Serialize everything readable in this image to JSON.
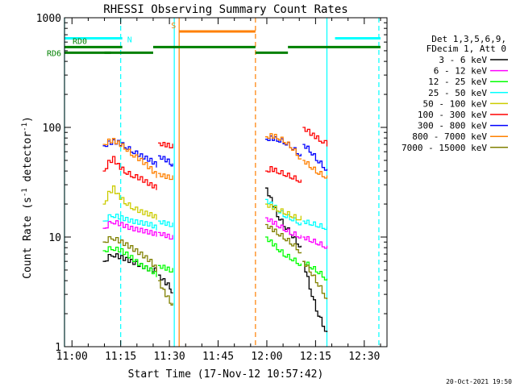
{
  "chart_data": {
    "type": "line",
    "title": "RHESSI Observing Summary Count Rates",
    "xlabel": "Start Time (17-Nov-12 10:57:42)",
    "ylabel": "Count Rate (s⁻¹ detector⁻¹)",
    "ylabel_main": "Count Rate (s",
    "ylabel_sup1": "-1",
    "ylabel_mid": " detector",
    "ylabel_sup2": "-1",
    "ylabel_end": ")",
    "y_scale": "log",
    "xlim": [
      "10:57:42",
      "12:37:00"
    ],
    "ylim": [
      1,
      1000
    ],
    "x_ticks": [
      "11:00",
      "11:15",
      "11:30",
      "11:45",
      "12:00",
      "12:15",
      "12:30"
    ],
    "y_ticks": [
      "1",
      "10",
      "100",
      "1000"
    ],
    "legend_header": [
      "Det 1,3,5,6,9,",
      "FDecim 1, Att 0"
    ],
    "footer": "20-Oct-2021 19:50",
    "grid": false,
    "legend_position": "right",
    "series": [
      {
        "name": "3 - 6 keV",
        "color": "#000000",
        "segments": [
          {
            "t": [
              "11:09:30",
              "11:12:00",
              "11:15:00",
              "11:18:00",
              "11:21:00",
              "11:24:00",
              "11:26:00"
            ],
            "v": [
              6,
              7,
              6.5,
              6,
              5.5,
              5,
              5
            ]
          },
          {
            "t": [
              "11:26:30",
              "11:28:00",
              "11:30:00",
              "11:31:00"
            ],
            "v": [
              4.5,
              4,
              3.5,
              3
            ]
          },
          {
            "t": [
              "11:59:30",
              "12:01:00",
              "12:03:00",
              "12:05:00",
              "12:07:00",
              "12:09:00",
              "12:10:30"
            ],
            "v": [
              28,
              22,
              16,
              13,
              11,
              9,
              8
            ]
          },
          {
            "t": [
              "12:11:00",
              "12:13:00",
              "12:15:00",
              "12:17:00",
              "12:18:30"
            ],
            "v": [
              6,
              3.5,
              2.2,
              1.6,
              1.3
            ]
          }
        ]
      },
      {
        "name": "6 - 12 keV",
        "color": "#ff00ff",
        "segments": [
          {
            "t": [
              "11:09:30",
              "11:12:00",
              "11:15:00",
              "11:18:00",
              "11:21:00",
              "11:24:00",
              "11:26:00"
            ],
            "v": [
              12,
              14,
              13,
              12,
              11.5,
              11,
              10.5
            ]
          },
          {
            "t": [
              "11:26:30",
              "11:28:00",
              "11:30:00",
              "11:31:00"
            ],
            "v": [
              11,
              10.5,
              10,
              10
            ]
          },
          {
            "t": [
              "11:59:30",
              "12:01:00",
              "12:03:00",
              "12:05:00",
              "12:07:00",
              "12:09:00",
              "12:10:30"
            ],
            "v": [
              15,
              14,
              13,
              12,
              11,
              10.5,
              10
            ]
          },
          {
            "t": [
              "12:11:00",
              "12:13:00",
              "12:15:00",
              "12:17:00",
              "12:18:30"
            ],
            "v": [
              10,
              9.5,
              9,
              8.5,
              8
            ]
          }
        ]
      },
      {
        "name": "12 - 25 keV",
        "color": "#00ff00",
        "segments": [
          {
            "t": [
              "11:09:30",
              "11:12:00",
              "11:15:00",
              "11:18:00",
              "11:21:00",
              "11:24:00",
              "11:26:00"
            ],
            "v": [
              7.5,
              8,
              7.5,
              6.5,
              5.5,
              5,
              4.5
            ]
          },
          {
            "t": [
              "11:26:30",
              "11:28:00",
              "11:30:00",
              "11:31:00"
            ],
            "v": [
              5.5,
              5.3,
              5,
              5
            ]
          },
          {
            "t": [
              "11:59:30",
              "12:01:00",
              "12:03:00",
              "12:05:00",
              "12:07:00",
              "12:09:00",
              "12:10:30"
            ],
            "v": [
              10,
              9,
              8,
              7,
              6.5,
              6,
              5.5
            ]
          },
          {
            "t": [
              "12:11:00",
              "12:13:00",
              "12:15:00",
              "12:17:00",
              "12:18:30"
            ],
            "v": [
              6,
              5.5,
              5,
              4.5,
              4
            ]
          }
        ]
      },
      {
        "name": "25 - 50 keV",
        "color": "#00ffff",
        "segments": [
          {
            "t": [
              "11:09:30",
              "11:12:00",
              "11:15:00",
              "11:18:00",
              "11:21:00",
              "11:24:00",
              "11:26:00"
            ],
            "v": [
              14,
              16,
              15,
              14,
              13.5,
              13,
              12
            ]
          },
          {
            "t": [
              "11:26:30",
              "11:28:00",
              "11:30:00",
              "11:31:00"
            ],
            "v": [
              14,
              13.5,
              13,
              13
            ]
          },
          {
            "t": [
              "11:59:30",
              "12:01:00",
              "12:03:00",
              "12:05:00",
              "12:07:00",
              "12:09:00",
              "12:10:30"
            ],
            "v": [
              22,
              20,
              18,
              16,
              15,
              14,
              13
            ]
          },
          {
            "t": [
              "12:11:00",
              "12:13:00",
              "12:15:00",
              "12:17:00",
              "12:18:30"
            ],
            "v": [
              14,
              13.5,
              13,
              12.5,
              12
            ]
          }
        ]
      },
      {
        "name": "50 - 100 keV",
        "color": "#cccc00",
        "segments": [
          {
            "t": [
              "11:09:30",
              "11:11:00",
              "11:12:30",
              "11:14:00",
              "11:16:00",
              "11:18:00",
              "11:21:00",
              "11:24:00",
              "11:26:00"
            ],
            "v": [
              20,
              25,
              28,
              24,
              21,
              19,
              17,
              16,
              15
            ]
          },
          {
            "t": [
              "11:59:30",
              "12:01:00",
              "12:03:00",
              "12:05:00",
              "12:07:00",
              "12:09:00",
              "12:10:30"
            ],
            "v": [
              20,
              19,
              18,
              17,
              16,
              15,
              15
            ]
          }
        ]
      },
      {
        "name": "100 - 300 keV",
        "color": "#ff0000",
        "segments": [
          {
            "t": [
              "11:09:30",
              "11:11:00",
              "11:12:30",
              "11:14:00",
              "11:16:00",
              "11:18:00",
              "11:21:00",
              "11:24:00",
              "11:26:00"
            ],
            "v": [
              40,
              48,
              52,
              45,
              40,
              37,
              34,
              30,
              28
            ]
          },
          {
            "t": [
              "11:26:30",
              "11:28:00",
              "11:30:00",
              "11:31:00"
            ],
            "v": [
              72,
              70,
              68,
              68
            ]
          },
          {
            "t": [
              "11:59:30",
              "12:01:00",
              "12:03:00",
              "12:05:00",
              "12:07:00",
              "12:09:00",
              "12:10:30"
            ],
            "v": [
              40,
              42,
              40,
              38,
              36,
              34,
              32
            ]
          },
          {
            "t": [
              "12:11:00",
              "12:12:30",
              "12:14:00",
              "12:16:00",
              "12:18:30"
            ],
            "v": [
              100,
              92,
              85,
              78,
              70
            ]
          }
        ]
      },
      {
        "name": "300 - 800 keV",
        "color": "#0000ff",
        "segments": [
          {
            "t": [
              "11:09:30",
              "11:11:00",
              "11:12:30",
              "11:14:00",
              "11:16:00",
              "11:18:00",
              "11:21:00",
              "11:24:00",
              "11:26:00"
            ],
            "v": [
              68,
              72,
              74,
              73,
              68,
              62,
              55,
              50,
              45
            ]
          },
          {
            "t": [
              "11:26:30",
              "11:28:00",
              "11:30:00",
              "11:31:00"
            ],
            "v": [
              55,
              52,
              48,
              45
            ]
          },
          {
            "t": [
              "11:59:30",
              "12:01:00",
              "12:03:00",
              "12:05:00",
              "12:07:00",
              "12:09:00",
              "12:10:30"
            ],
            "v": [
              78,
              80,
              78,
              74,
              68,
              60,
              55
            ]
          },
          {
            "t": [
              "12:11:00",
              "12:13:00",
              "12:15:00",
              "12:17:00",
              "12:18:30"
            ],
            "v": [
              70,
              62,
              52,
              45,
              40
            ]
          }
        ]
      },
      {
        "name": "800 - 7000 keV",
        "color": "#ff8000",
        "segments": [
          {
            "t": [
              "11:09:30",
              "11:11:00",
              "11:12:30",
              "11:14:00",
              "11:16:00",
              "11:18:00",
              "11:21:00",
              "11:24:00",
              "11:26:00"
            ],
            "v": [
              70,
              75,
              76,
              72,
              66,
              58,
              50,
              42,
              36
            ]
          },
          {
            "t": [
              "11:26:30",
              "11:28:00",
              "11:30:00",
              "11:31:00"
            ],
            "v": [
              38,
              36,
              35,
              35
            ]
          },
          {
            "t": [
              "11:59:30",
              "12:01:00",
              "12:03:00",
              "12:05:00",
              "12:07:00",
              "12:09:00",
              "12:10:30"
            ],
            "v": [
              82,
              84,
              82,
              76,
              68,
              58,
              50
            ]
          },
          {
            "t": [
              "12:11:00",
              "12:13:00",
              "12:15:00",
              "12:17:00",
              "12:18:30"
            ],
            "v": [
              50,
              45,
              40,
              37,
              35
            ]
          }
        ]
      },
      {
        "name": "7000 - 15000 keV",
        "color": "#808000",
        "segments": [
          {
            "t": [
              "11:09:30",
              "11:12:00",
              "11:15:00",
              "11:18:00",
              "11:21:00",
              "11:24:00",
              "11:26:00"
            ],
            "v": [
              9,
              10,
              9,
              8,
              7,
              6,
              5
            ]
          },
          {
            "t": [
              "11:26:30",
              "11:28:00",
              "11:30:00",
              "11:31:00"
            ],
            "v": [
              4,
              3.2,
              2.6,
              2.4
            ]
          },
          {
            "t": [
              "11:59:30",
              "12:01:00",
              "12:03:00",
              "12:05:00",
              "12:07:00",
              "12:09:00",
              "12:10:30"
            ],
            "v": [
              13,
              12,
              11,
              10,
              9,
              8,
              7
            ]
          },
          {
            "t": [
              "12:11:00",
              "12:13:00",
              "12:15:00",
              "12:17:00",
              "12:18:30"
            ],
            "v": [
              6,
              5,
              4,
              3.2,
              2.6
            ]
          }
        ]
      }
    ],
    "annotations": {
      "bars": [
        {
          "label": "",
          "color": "#00ffff",
          "t": [
            "10:57:42",
            "11:15:30"
          ],
          "v": 650
        },
        {
          "label": "",
          "color": "#00ffff",
          "t": [
            "12:21:00",
            "12:35:00"
          ],
          "v": 650
        },
        {
          "label": "S",
          "color": "#ff8000",
          "t": [
            "11:33:00",
            "11:56:30"
          ],
          "v": 750
        },
        {
          "label": "RD0",
          "color": "#008000",
          "t": [
            "10:57:42",
            "11:15:30"
          ],
          "v": 540
        },
        {
          "label": "",
          "color": "#008000",
          "t": [
            "11:25:00",
            "11:56:30"
          ],
          "v": 540
        },
        {
          "label": "",
          "color": "#008000",
          "t": [
            "12:06:30",
            "12:18:30"
          ],
          "v": 540
        },
        {
          "label": "",
          "color": "#008000",
          "t": [
            "12:18:30",
            "12:35:00"
          ],
          "v": 540
        },
        {
          "label": "RD6",
          "color": "#008000",
          "t": [
            "10:57:42",
            "11:12:00"
          ],
          "v": 480
        },
        {
          "label": "",
          "color": "#008000",
          "t": [
            "11:10:00",
            "11:25:00"
          ],
          "v": 480
        },
        {
          "label": "",
          "color": "#008000",
          "t": [
            "11:56:30",
            "12:06:30"
          ],
          "v": 480
        }
      ],
      "bar_labels": {
        "N": {
          "t": "11:16:00",
          "color": "#00ffff"
        }
      },
      "vlines": [
        {
          "t": "10:57:42",
          "color": "#00ffff",
          "dash": false
        },
        {
          "t": "11:15:00",
          "color": "#00ffff",
          "dash": true
        },
        {
          "t": "11:31:30",
          "color": "#00ffff",
          "dash": false
        },
        {
          "t": "11:33:00",
          "color": "#ff8000",
          "dash": false
        },
        {
          "t": "11:56:30",
          "color": "#ff8000",
          "dash": true
        },
        {
          "t": "12:18:30",
          "color": "#00ffff",
          "dash": false
        },
        {
          "t": "12:34:30",
          "color": "#00ffff",
          "dash": true
        }
      ]
    }
  }
}
